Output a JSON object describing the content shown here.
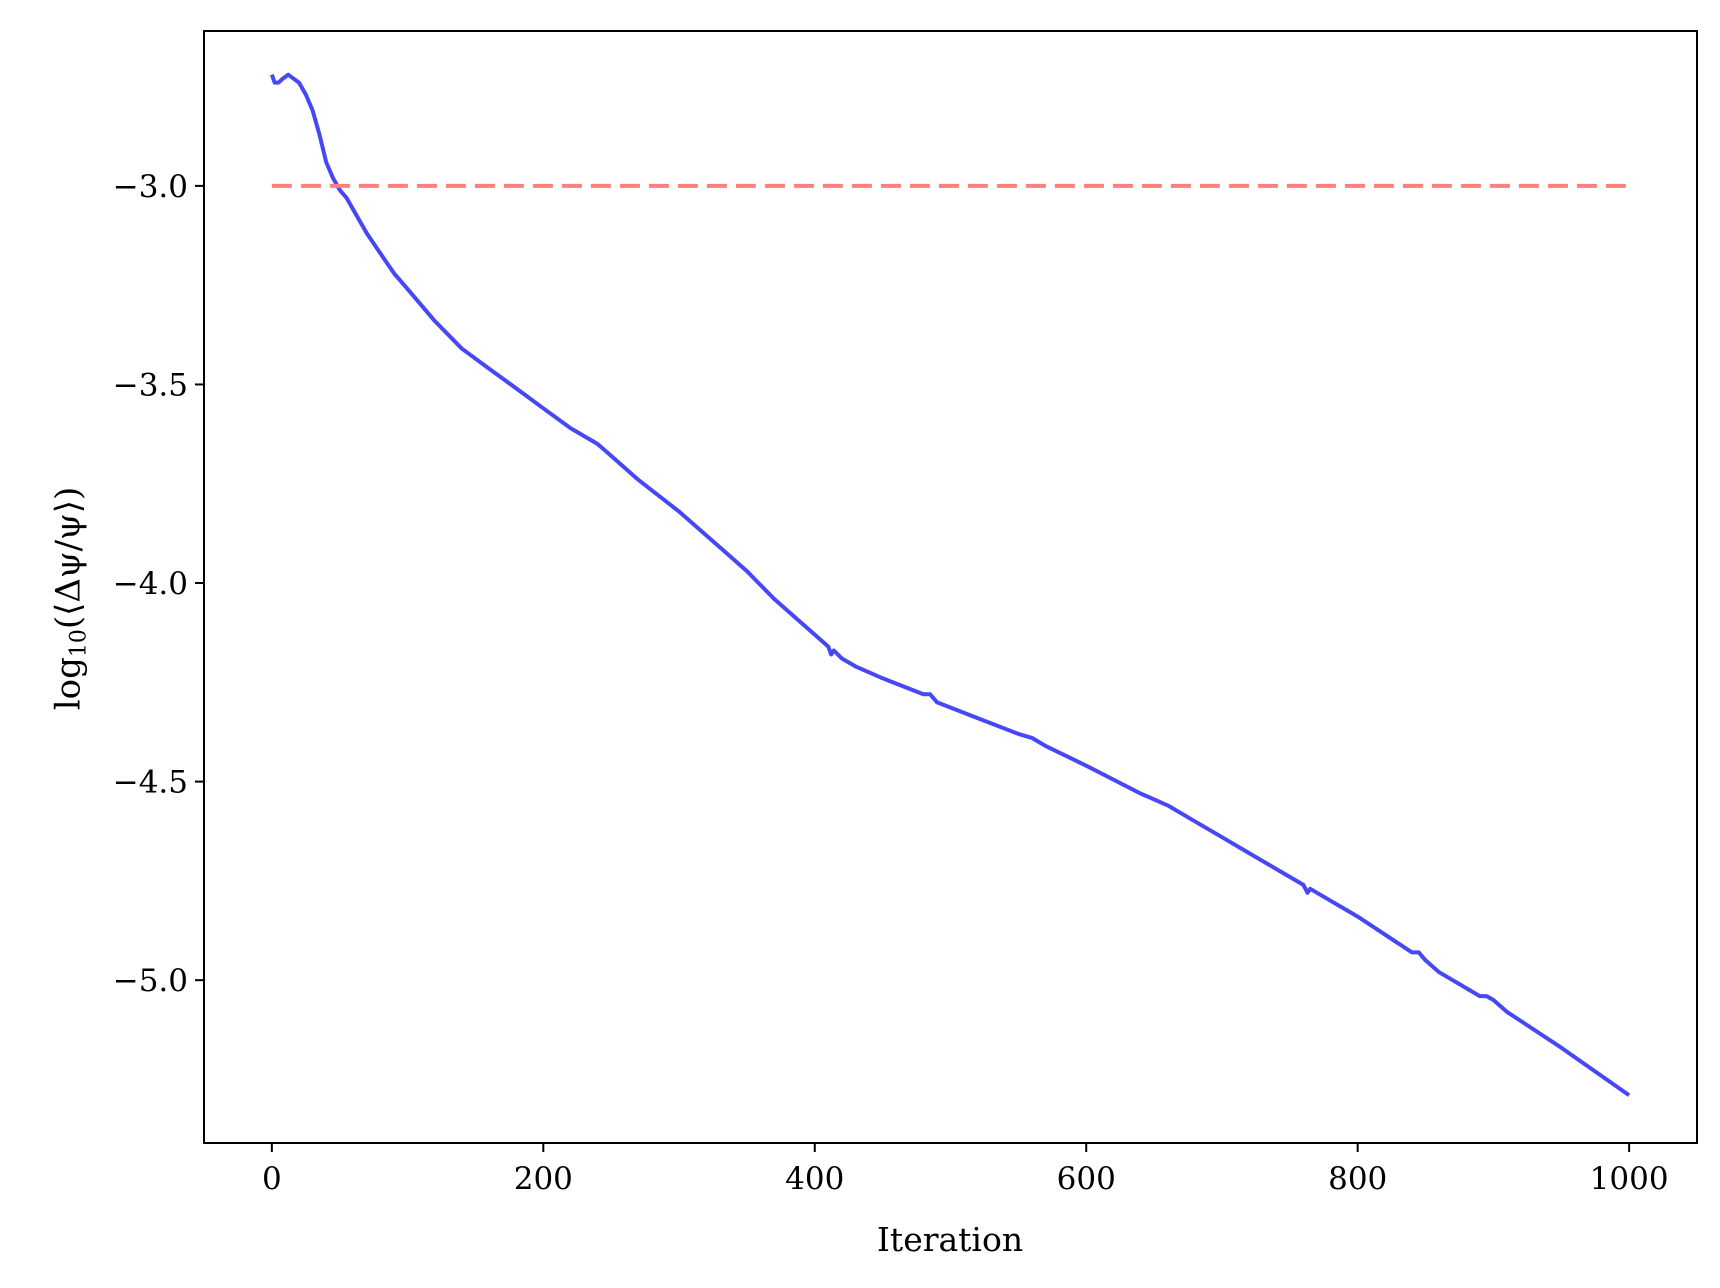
{
  "chart_data": {
    "type": "line",
    "xlabel": "Iteration",
    "ylabel": {
      "prefix": "log",
      "subscript": "10",
      "body": "(⟨Δψ/ψ⟩)"
    },
    "xlim": [
      -50,
      1050
    ],
    "ylim": [
      -5.41,
      -2.61
    ],
    "x_ticks": [
      0,
      200,
      400,
      600,
      800,
      1000
    ],
    "x_tick_labels": [
      "0",
      "200",
      "400",
      "600",
      "800",
      "1000"
    ],
    "y_ticks": [
      -3.0,
      -3.5,
      -4.0,
      -4.5,
      -5.0
    ],
    "y_tick_labels": [
      "−3.0",
      "−3.5",
      "−4.0",
      "−4.5",
      "−5.0"
    ],
    "grid": false,
    "series": [
      {
        "color": "#4747f5",
        "style": "solid",
        "x": [
          0,
          2,
          5,
          8,
          12,
          16,
          20,
          25,
          30,
          35,
          40,
          45,
          50,
          55,
          60,
          70,
          80,
          90,
          100,
          120,
          140,
          160,
          180,
          200,
          220,
          240,
          250,
          270,
          300,
          330,
          350,
          370,
          390,
          410,
          412,
          414,
          420,
          430,
          450,
          480,
          485,
          490,
          520,
          550,
          560,
          570,
          600,
          640,
          660,
          680,
          700,
          720,
          740,
          760,
          763,
          765,
          770,
          800,
          840,
          845,
          850,
          860,
          890,
          895,
          900,
          910,
          950,
          1000
        ],
        "y": [
          -2.72,
          -2.74,
          -2.74,
          -2.73,
          -2.72,
          -2.73,
          -2.74,
          -2.77,
          -2.81,
          -2.87,
          -2.94,
          -2.98,
          -3.01,
          -3.03,
          -3.06,
          -3.12,
          -3.17,
          -3.22,
          -3.26,
          -3.34,
          -3.41,
          -3.46,
          -3.51,
          -3.56,
          -3.61,
          -3.65,
          -3.68,
          -3.74,
          -3.82,
          -3.91,
          -3.97,
          -4.04,
          -4.1,
          -4.16,
          -4.18,
          -4.17,
          -4.19,
          -4.21,
          -4.24,
          -4.28,
          -4.28,
          -4.3,
          -4.34,
          -4.38,
          -4.39,
          -4.41,
          -4.46,
          -4.53,
          -4.56,
          -4.6,
          -4.64,
          -4.68,
          -4.72,
          -4.76,
          -4.78,
          -4.77,
          -4.78,
          -4.84,
          -4.93,
          -4.93,
          -4.95,
          -4.98,
          -5.04,
          -5.04,
          -5.05,
          -5.08,
          -5.17,
          -5.29
        ]
      },
      {
        "color": "#ff7f7f",
        "style": "dashed",
        "x": [
          0,
          1000
        ],
        "y": [
          -3.0,
          -3.0
        ]
      }
    ]
  }
}
